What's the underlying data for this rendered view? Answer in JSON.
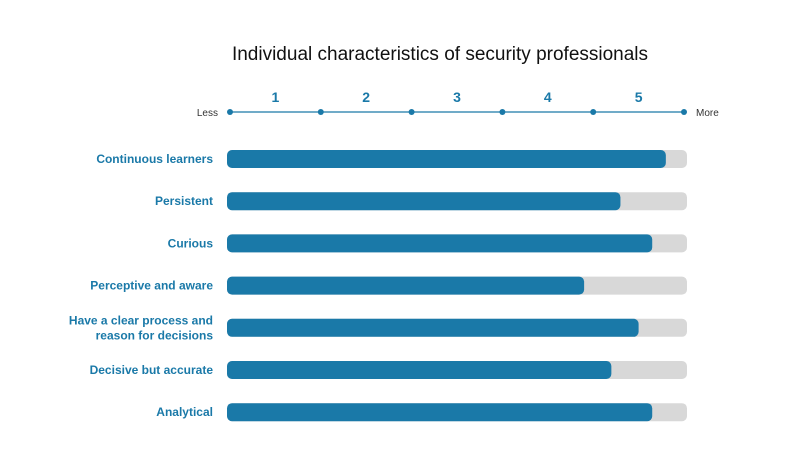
{
  "chart_data": {
    "type": "bar",
    "orientation": "horizontal",
    "title": "Individual characteristics of security professionals",
    "scale": {
      "min_label": "Less",
      "max_label": "More",
      "tick_labels": [
        "1",
        "2",
        "3",
        "4",
        "5"
      ],
      "min": 0.5,
      "max": 5.5
    },
    "categories": [
      "Continuous learners",
      "Persistent",
      "Curious",
      "Perceptive and aware",
      "Have a clear process and reason for decisions",
      "Decisive but accurate",
      "Analytical"
    ],
    "category_lines": [
      [
        "Continuous learners"
      ],
      [
        "Persistent"
      ],
      [
        "Curious"
      ],
      [
        "Perceptive and aware"
      ],
      [
        "Have a clear process and",
        "reason for decisions"
      ],
      [
        "Decisive but accurate"
      ],
      [
        "Analytical"
      ]
    ],
    "values": [
      5.3,
      4.8,
      5.15,
      4.4,
      5.0,
      4.7,
      5.15
    ],
    "colors": {
      "bar": "#1a79a8",
      "track": "#d8d8d8",
      "axis": "#1a79a8",
      "label": "#1a79a8"
    },
    "legend": "none",
    "grid": false
  }
}
